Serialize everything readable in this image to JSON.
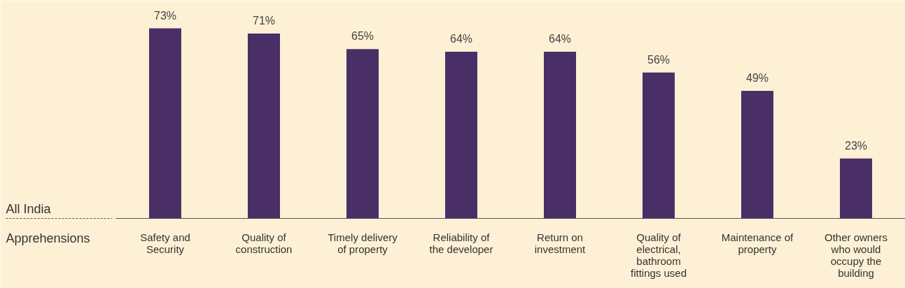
{
  "chart_data": {
    "type": "bar",
    "xlabel": "Apprehensions",
    "annotations": [
      "All India"
    ],
    "categories": [
      "Safety and Security",
      "Quality of construction",
      "Timely delivery of property",
      "Reliability of the developer",
      "Return on investment",
      "Quality of electrical, bathroom fittings used",
      "Maintenance of property",
      "Other owners who would occupy the building"
    ],
    "values": [
      73,
      71,
      65,
      64,
      64,
      56,
      49,
      23
    ],
    "value_labels": [
      "73%",
      "71%",
      "65%",
      "64%",
      "64%",
      "56%",
      "49%",
      "23%"
    ],
    "color": "#4a2f66",
    "grid": false
  }
}
